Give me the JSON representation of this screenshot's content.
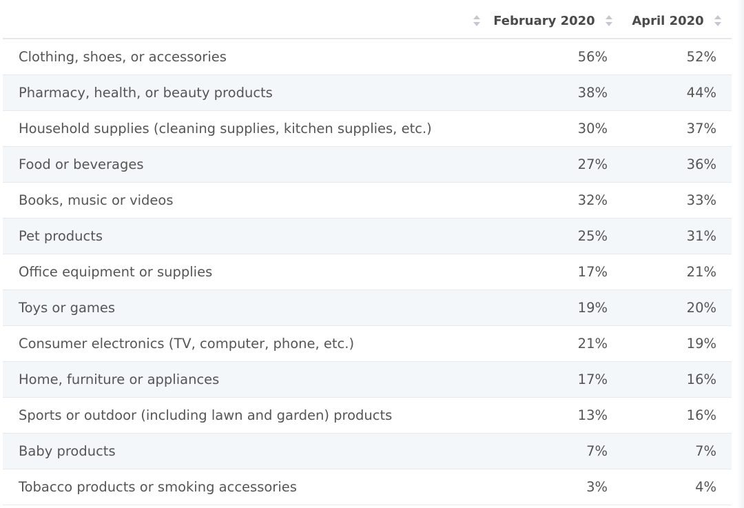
{
  "chart_data": {
    "type": "table",
    "columns": [
      "",
      "February 2020",
      "April 2020"
    ],
    "rows": [
      {
        "category": "Clothing, shoes, or accessories",
        "february_2020": "56%",
        "april_2020": "52%"
      },
      {
        "category": "Pharmacy, health, or beauty products",
        "february_2020": "38%",
        "april_2020": "44%"
      },
      {
        "category": "Household supplies (cleaning supplies, kitchen supplies, etc.)",
        "february_2020": "30%",
        "april_2020": "37%"
      },
      {
        "category": "Food or beverages",
        "february_2020": "27%",
        "april_2020": "36%"
      },
      {
        "category": "Books, music or videos",
        "february_2020": "32%",
        "april_2020": "33%"
      },
      {
        "category": "Pet products",
        "february_2020": "25%",
        "april_2020": "31%"
      },
      {
        "category": "Office equipment or supplies",
        "february_2020": "17%",
        "april_2020": "21%"
      },
      {
        "category": "Toys or games",
        "february_2020": "19%",
        "april_2020": "20%"
      },
      {
        "category": "Consumer electronics (TV, computer, phone, etc.)",
        "february_2020": "21%",
        "april_2020": "19%"
      },
      {
        "category": "Home, furniture or appliances",
        "february_2020": "17%",
        "april_2020": "16%"
      },
      {
        "category": "Sports or outdoor (including lawn and garden) products",
        "february_2020": "13%",
        "april_2020": "16%"
      },
      {
        "category": "Baby products",
        "february_2020": "7%",
        "april_2020": "7%"
      },
      {
        "category": "Tobacco products or smoking accessories",
        "february_2020": "3%",
        "april_2020": "4%"
      }
    ]
  },
  "icons": {
    "sort": "sort-icon"
  },
  "colors": {
    "text": "#555555",
    "header_text": "#4a4a4a",
    "row_alt": "#f4f7fa",
    "border": "#e6e9ee",
    "sort_icon": "#c4c8ce"
  }
}
